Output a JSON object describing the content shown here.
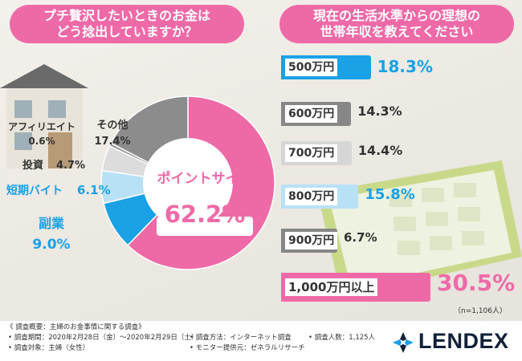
{
  "left_title": {
    "line1": "プチ贅沢したいときのお金は",
    "line2": "どう捻出していますか？"
  },
  "right_title": {
    "line1": "現在の生活水準からの理想の",
    "line2": "世帯年収を教えてください"
  },
  "chart_data": [
    {
      "type": "pie",
      "title": "プチ贅沢したいときのお金はどう捻出していますか？",
      "slices": [
        {
          "label": "ポイントサイト",
          "value": 62.2,
          "value_label": "62.2%",
          "color": "#ee6aa7"
        },
        {
          "label": "副業",
          "value": 9.0,
          "value_label": "9.0%",
          "color": "#1aa1e6"
        },
        {
          "label": "短期バイト",
          "value": 6.1,
          "value_label": "6.1%",
          "color": "#b9e1f6"
        },
        {
          "label": "投資",
          "value": 4.7,
          "value_label": "4.7%",
          "color": "#dcdcdc"
        },
        {
          "label": "アフィリエイト",
          "value": 0.6,
          "value_label": "0.6%",
          "color": "#9a9a9a"
        },
        {
          "label": "その他",
          "value": 17.4,
          "value_label": "17.4%",
          "color": "#8c8c8c"
        }
      ]
    },
    {
      "type": "bar",
      "title": "現在の生活水準からの理想の世帯年収を教えてください",
      "categories": [
        "500万円",
        "600万円",
        "700万円",
        "800万円",
        "900万円",
        "1,000万円以上"
      ],
      "values": [
        18.3,
        14.3,
        14.4,
        15.8,
        6.7,
        30.5
      ],
      "value_labels": [
        "18.3%",
        "14.3%",
        "14.4%",
        "15.8%",
        "6.7%",
        "30.5%"
      ],
      "colors": [
        "#1aa1e6",
        "#878787",
        "#d6d6d6",
        "#b9e1f6",
        "#878787",
        "#ee6aa7"
      ],
      "note": "（n=1,106人）"
    }
  ],
  "footer": {
    "overview": "《 調査概要：主婦のお金事情に関する調査》",
    "period": "• 調査期間：2020年2月28日（金）～2020年2月29日（土）",
    "target": "• 調査対象：主婦（女性）",
    "method": "• 調査方法：インターネット調査",
    "provider": "• モニター提供元：ゼネラルリサーチ",
    "count": "• 調査人数：1,125人",
    "logo": "LENDEX"
  },
  "colors": {
    "pink": "#ee6aa7",
    "blue": "#1aa1e6",
    "light_blue": "#b9e1f6",
    "gray": "#878787",
    "light_gray": "#d6d6d6",
    "navy": "#12203a"
  }
}
